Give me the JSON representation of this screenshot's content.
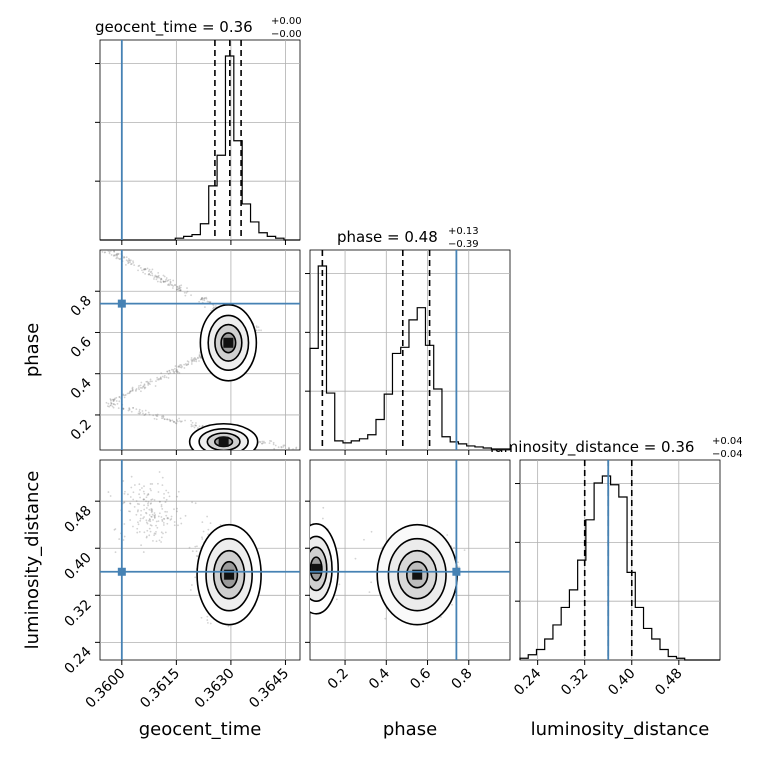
{
  "chart_data": {
    "type": "corner",
    "parameters": [
      "geocent_time",
      "phase",
      "luminosity_distance"
    ],
    "axis_labels": {
      "geocent_time": "geocent_time",
      "phase": "phase",
      "luminosity_distance": "luminosity_distance"
    },
    "truth": {
      "geocent_time": 0.36,
      "phase": 0.74,
      "luminosity_distance": 0.36
    },
    "ranges": {
      "geocent_time": [
        0.3594,
        0.3649
      ],
      "phase": [
        0.03,
        1.0
      ],
      "luminosity_distance": [
        0.21,
        0.55
      ]
    },
    "ticks": {
      "geocent_time": {
        "values": [
          0.36,
          0.3615,
          0.363,
          0.3645
        ],
        "labels": [
          "0.3600",
          "0.3615",
          "0.3630",
          "0.3645"
        ]
      },
      "phase": {
        "values": [
          0.2,
          0.4,
          0.6,
          0.8
        ],
        "labels": [
          "0.2",
          "0.4",
          "0.6",
          "0.8"
        ]
      },
      "luminosity_distance": {
        "values": [
          0.24,
          0.32,
          0.4,
          0.48
        ],
        "labels": [
          "0.24",
          "0.32",
          "0.40",
          "0.48"
        ]
      }
    },
    "titles": {
      "geocent_time": {
        "main": "geocent_time = 0.36",
        "sup": "+0.00",
        "sub": "−0.00"
      },
      "phase": {
        "main": "phase = 0.48",
        "sup": "+0.13",
        "sub": "−0.39"
      },
      "luminosity_distance": {
        "main": "luminosity_distance = 0.36",
        "sup": "+0.04",
        "sub": "−0.04"
      }
    },
    "quantiles": {
      "geocent_time": [
        0.36256,
        0.36297,
        0.36328
      ],
      "phase": [
        0.09,
        0.48,
        0.61
      ],
      "luminosity_distance": [
        0.32,
        0.36,
        0.4
      ]
    },
    "histograms": {
      "geocent_time": {
        "edges": [
          0.3594,
          0.35963,
          0.35986,
          0.36009,
          0.36032,
          0.36055,
          0.36078,
          0.36101,
          0.36124,
          0.36147,
          0.3617,
          0.36193,
          0.36216,
          0.36239,
          0.36262,
          0.36285,
          0.36308,
          0.36331,
          0.36354,
          0.36377,
          0.364,
          0.36423,
          0.36446,
          0.36469,
          0.3649
        ],
        "counts": [
          0,
          0,
          0,
          0,
          0,
          0,
          0,
          0,
          0,
          1,
          2,
          3,
          9,
          30,
          47,
          102,
          55,
          20,
          10,
          4,
          2,
          1,
          0,
          0
        ]
      },
      "phase": {
        "edges": [
          0.03,
          0.07,
          0.11,
          0.15,
          0.19,
          0.23,
          0.27,
          0.31,
          0.35,
          0.39,
          0.43,
          0.47,
          0.51,
          0.55,
          0.59,
          0.63,
          0.67,
          0.71,
          0.75,
          0.79,
          0.83,
          0.87,
          0.91,
          0.95,
          1.0
        ],
        "counts": [
          100,
          181,
          56,
          9,
          7,
          9,
          11,
          15,
          30,
          55,
          95,
          101,
          128,
          140,
          103,
          60,
          13,
          8,
          6,
          4,
          3,
          2,
          1,
          1
        ]
      },
      "luminosity_distance": {
        "edges": [
          0.21,
          0.224,
          0.238,
          0.252,
          0.266,
          0.28,
          0.294,
          0.308,
          0.322,
          0.336,
          0.35,
          0.364,
          0.378,
          0.392,
          0.406,
          0.42,
          0.434,
          0.448,
          0.462,
          0.476,
          0.49,
          0.504,
          0.518,
          0.532,
          0.55
        ],
        "counts": [
          1,
          3,
          6,
          12,
          20,
          30,
          40,
          57,
          80,
          101,
          105,
          100,
          93,
          50,
          30,
          18,
          12,
          6,
          2,
          1,
          0,
          0,
          0,
          0
        ]
      }
    },
    "colors": {
      "truth": "#4682b4",
      "contour": "#000000",
      "scatter": "#808080",
      "grid": "#b0b0b0",
      "hist": "#000000"
    }
  }
}
